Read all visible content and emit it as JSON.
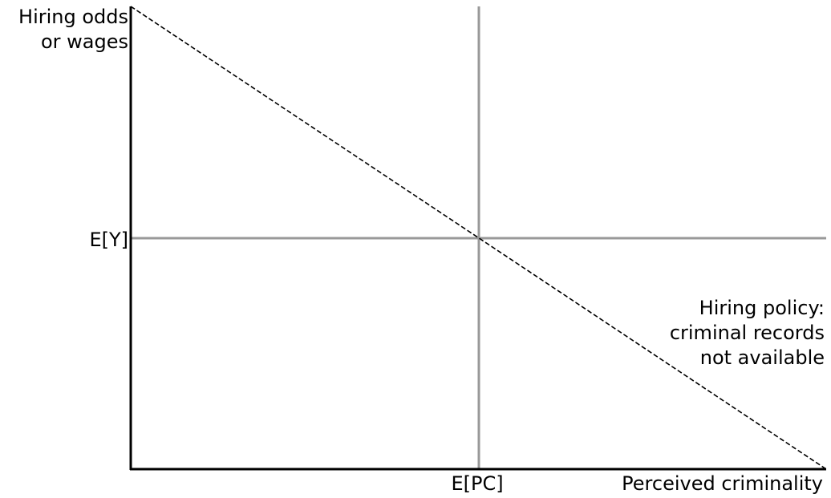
{
  "y_axis_label": [
    "Hiring odds",
    "or wages"
  ],
  "x_axis_label": "Perceived criminality",
  "mean_y_label": "E[Y]",
  "mean_pc_label": "E[PC]",
  "policy_label": [
    "Hiring policy:",
    "criminal records",
    "not available"
  ],
  "colors": {
    "axes": "#000000",
    "reference_lines": "#999999",
    "policy_line": "#000000"
  }
}
